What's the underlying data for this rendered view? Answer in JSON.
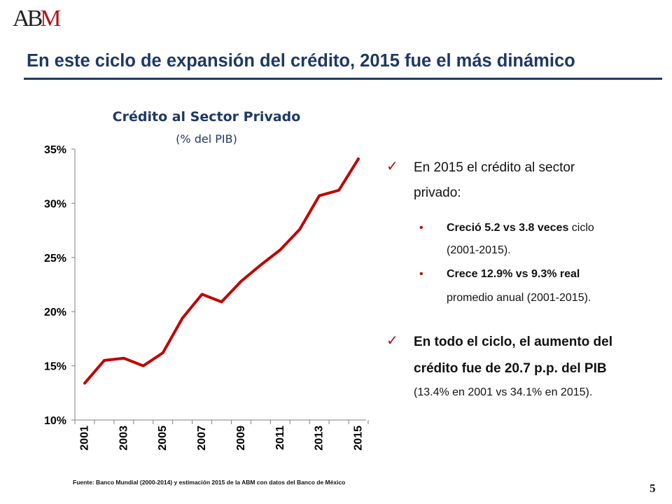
{
  "logo": {
    "text_a": "A",
    "text_b": "B",
    "text_m": "M"
  },
  "header": {
    "title": "En este ciclo de expansión del crédito, 2015 fue el más dinámico"
  },
  "chart_data": {
    "type": "line",
    "title": "Crédito al Sector Privado",
    "subtitle": "(% del PIB)",
    "x": [
      2001,
      2002,
      2003,
      2004,
      2005,
      2006,
      2007,
      2008,
      2009,
      2010,
      2011,
      2012,
      2013,
      2014,
      2015
    ],
    "x_tick_labels": [
      "2001",
      "2003",
      "2005",
      "2007",
      "2009",
      "2011",
      "2013",
      "2015"
    ],
    "series": [
      {
        "values": [
          13.4,
          15.5,
          15.7,
          15.0,
          16.2,
          19.4,
          21.6,
          20.9,
          22.8,
          24.3,
          25.7,
          27.6,
          30.7,
          31.2,
          34.1
        ]
      }
    ],
    "y_tick_labels": [
      "10%",
      "15%",
      "20%",
      "25%",
      "30%",
      "35%"
    ],
    "ylim": [
      10,
      35
    ],
    "line_color": "#c00000",
    "grid": false,
    "legend": "none"
  },
  "bullets": {
    "b1_text_a": "En 2015 el crédito al sector",
    "b1_text_b": "privado:",
    "s1_bold": "Creció 5.2 vs 3.8 veces",
    "s1_rest": " ciclo",
    "s1_line2": "(2001-2015).",
    "s2_bold": "Crece 12.9% vs 9.3% real",
    "s2_line2": "promedio anual (2001-2015).",
    "b2_line1": "En todo el ciclo, el aumento del",
    "b2_line2": "crédito fue de 20.7 p.p. del PIB",
    "b2_line3": "(13.4% en 2001 vs 34.1% en 2015).",
    "check_glyph": "✓",
    "dot_glyph": "•"
  },
  "footer": {
    "source": "Fuente: Banco Mundial (2000-2014) y estimación 2015 de la ABM con datos del Banco de México",
    "page_number": "5"
  },
  "colors": {
    "title": "#1f3864",
    "accent": "#c00000"
  }
}
